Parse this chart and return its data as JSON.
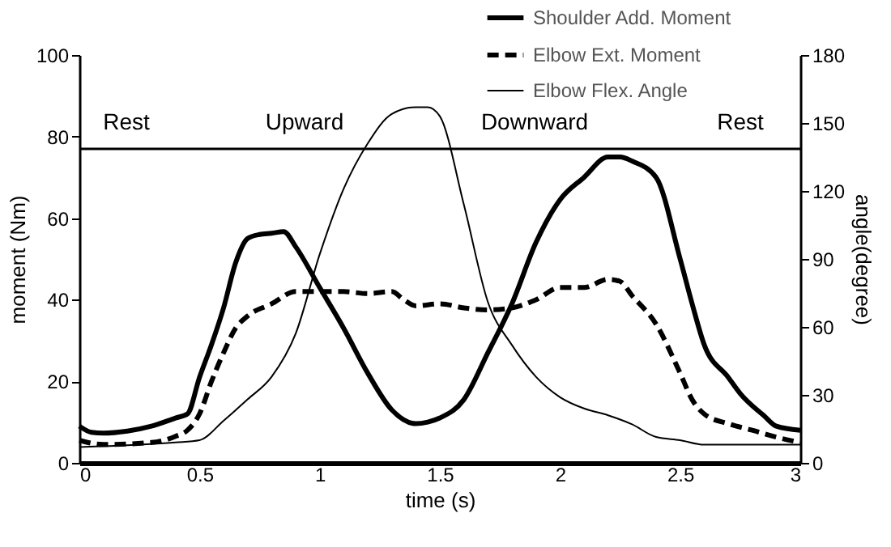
{
  "chart_data": {
    "type": "line",
    "xlabel": "time (s)",
    "ylabel": "moment (Nm)",
    "y2label": "angle(degree)",
    "xlim": [
      0,
      3
    ],
    "xticks": [
      0,
      0.5,
      1,
      1.5,
      2,
      2.5,
      3
    ],
    "ylim": [
      0,
      100
    ],
    "yticks": [
      0,
      20,
      40,
      60,
      80,
      100
    ],
    "y2lim": [
      0,
      180
    ],
    "y2ticks": [
      0,
      30,
      60,
      90,
      120,
      150,
      180
    ],
    "grid": false,
    "legend": "top right",
    "series": [
      {
        "name": "Shoulder Add. Moment",
        "color": "#000000",
        "line_style": "solid",
        "x": [
          0,
          0.05,
          0.1,
          0.2,
          0.3,
          0.4,
          0.45,
          0.5,
          0.55,
          0.6,
          0.65,
          0.7,
          0.75,
          0.8,
          0.85,
          0.9,
          1.0,
          1.1,
          1.2,
          1.3,
          1.4,
          1.45,
          1.5,
          1.6,
          1.7,
          1.8,
          1.9,
          2.0,
          2.1,
          2.2,
          2.25,
          2.3,
          2.4,
          2.5,
          2.55,
          2.6,
          2.7,
          2.75,
          2.85,
          2.9,
          3.0
        ],
        "values": [
          9,
          7.5,
          7.3,
          7.8,
          9,
          11,
          12,
          21,
          29,
          38,
          49,
          55,
          56,
          56.3,
          56.7,
          53,
          43,
          33,
          22,
          13,
          9.6,
          10,
          11,
          15.5,
          27,
          39,
          54,
          64.5,
          70,
          75,
          75,
          74,
          70,
          50,
          39,
          29,
          21,
          17,
          11.5,
          9,
          8
        ]
      },
      {
        "name": "Elbow Ext. Moment",
        "color": "#000000",
        "line_style": "dashed",
        "x": [
          0,
          0.1,
          0.3,
          0.4,
          0.45,
          0.5,
          0.55,
          0.6,
          0.65,
          0.7,
          0.8,
          0.9,
          1.0,
          1.1,
          1.2,
          1.3,
          1.35,
          1.4,
          1.5,
          1.6,
          1.7,
          1.8,
          1.9,
          2.0,
          2.1,
          2.2,
          2.25,
          2.3,
          2.4,
          2.5,
          2.55,
          2.6,
          2.7,
          2.8,
          2.9,
          3.0
        ],
        "values": [
          5.5,
          4.5,
          5,
          6.5,
          8,
          12,
          20,
          27,
          33,
          36,
          39,
          42,
          42,
          42,
          41.5,
          42,
          40,
          38.5,
          39,
          38,
          37.5,
          38,
          40,
          43,
          43,
          45,
          44.5,
          41,
          34,
          22,
          15.5,
          12,
          9.6,
          8,
          6.3,
          5
        ]
      },
      {
        "name": "Elbow Flex. Angle",
        "color": "#000000",
        "line_style": "solid",
        "axis": "y2",
        "x": [
          0,
          0.4,
          0.5,
          0.6,
          0.7,
          0.8,
          0.9,
          1.0,
          1.1,
          1.2,
          1.3,
          1.4,
          1.45,
          1.5,
          1.6,
          1.7,
          1.8,
          1.9,
          2.0,
          2.1,
          2.2,
          2.3,
          2.4,
          2.5,
          2.6,
          3.0
        ],
        "values": [
          7,
          9,
          10,
          18.6,
          28,
          38,
          57,
          92,
          121,
          141,
          154,
          157,
          157,
          153,
          114,
          71,
          52,
          38,
          29,
          24,
          21,
          17,
          11.4,
          10,
          8,
          8
        ]
      }
    ],
    "ref_lines": [
      {
        "axis": "y",
        "value": 77,
        "color": "#000000"
      }
    ],
    "annotations": [
      "Rest",
      "Upward",
      "Downward",
      "Rest"
    ]
  }
}
